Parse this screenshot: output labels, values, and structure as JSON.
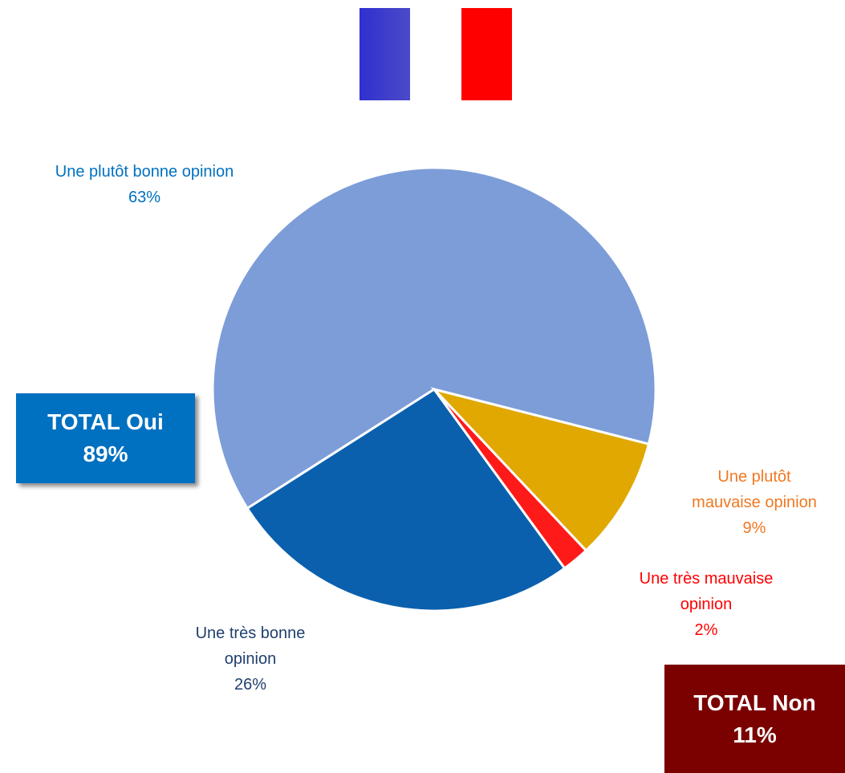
{
  "chart_data": {
    "type": "pie",
    "categories": [
      "Une plutôt bonne opinion",
      "Une plutôt mauvaise opinion",
      "Une très mauvaise opinion",
      "Une très bonne opinion"
    ],
    "values": [
      63,
      9,
      2,
      26
    ],
    "value_labels": [
      "63%",
      "9%",
      "2%",
      "26%"
    ],
    "colors": [
      "#7d9dd8",
      "#e0a800",
      "#ff1a1a",
      "#0a60ad"
    ],
    "label_colors": [
      "#0070c0",
      "#f07820",
      "#ff0000",
      "#1f3f6f"
    ],
    "totals": [
      {
        "label": "TOTAL Oui",
        "value": "89%"
      },
      {
        "label": "TOTAL Non",
        "value": "11%"
      }
    ]
  }
}
